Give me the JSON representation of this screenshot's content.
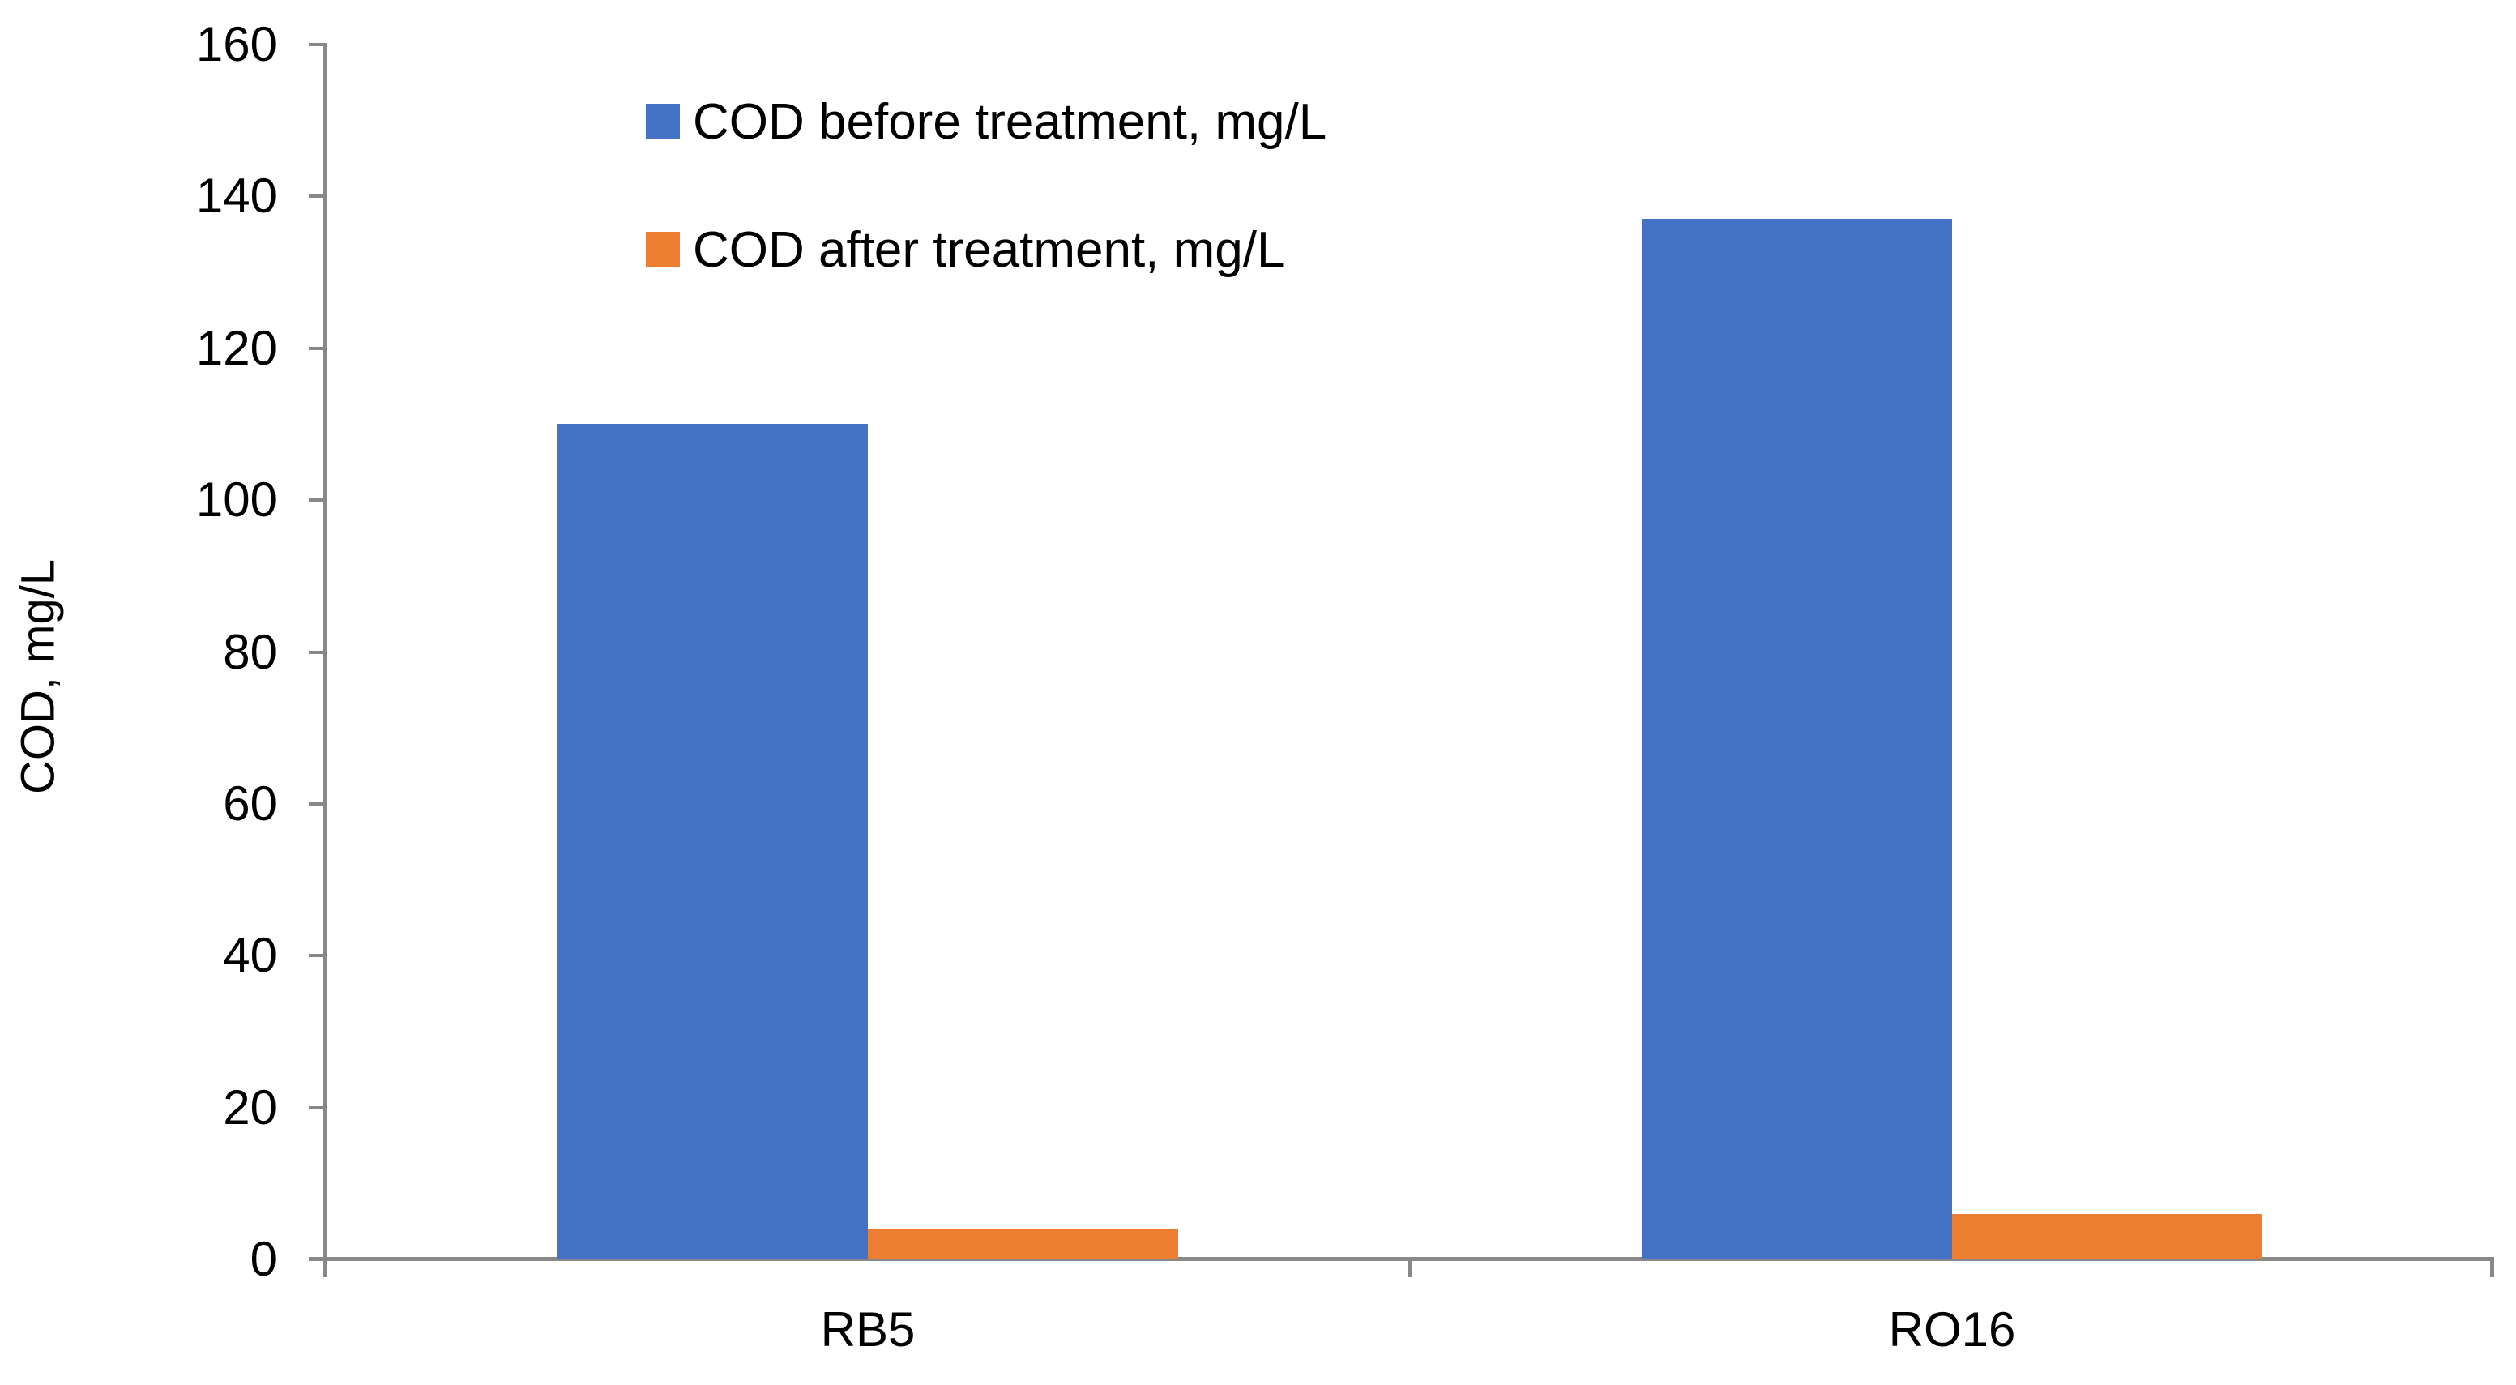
{
  "chart_data": {
    "type": "bar",
    "title": "",
    "categories": [
      "RB5",
      "RO16"
    ],
    "series": [
      {
        "name": "COD before treatment, mg/L",
        "color": "#4472C4",
        "values": [
          110,
          137
        ]
      },
      {
        "name": "COD after treatment, mg/L",
        "color": "#ED7D31",
        "values": [
          4,
          6
        ]
      }
    ],
    "xlabel": "",
    "ylabel": "COD, mg/L",
    "ylim": [
      0,
      160
    ],
    "ytick_step": 20,
    "yticks": [
      0,
      20,
      40,
      60,
      80,
      100,
      120,
      140,
      160
    ],
    "grid": false,
    "legend_position": "inside-top-left",
    "axis_color": "#888888",
    "background_color": "#ffffff",
    "text_color": "#000000"
  }
}
